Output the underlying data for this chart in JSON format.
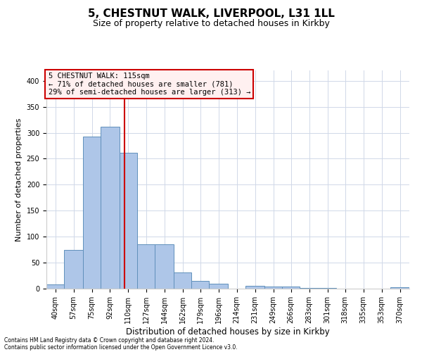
{
  "title1": "5, CHESTNUT WALK, LIVERPOOL, L31 1LL",
  "title2": "Size of property relative to detached houses in Kirkby",
  "xlabel": "Distribution of detached houses by size in Kirkby",
  "ylabel": "Number of detached properties",
  "footnote1": "Contains HM Land Registry data © Crown copyright and database right 2024.",
  "footnote2": "Contains public sector information licensed under the Open Government Licence v3.0.",
  "annotation_line1": "5 CHESTNUT WALK: 115sqm",
  "annotation_line2": "← 71% of detached houses are smaller (781)",
  "annotation_line3": "29% of semi-detached houses are larger (313) →",
  "bar_color": "#aec6e8",
  "bar_edge_color": "#6090bb",
  "vline_color": "#cc0000",
  "vline_x": 115,
  "bins": [
    40,
    57,
    75,
    92,
    110,
    127,
    144,
    162,
    179,
    196,
    214,
    231,
    249,
    266,
    283,
    301,
    318,
    335,
    353,
    370,
    388
  ],
  "counts": [
    8,
    75,
    293,
    311,
    262,
    85,
    85,
    31,
    15,
    9,
    0,
    5,
    4,
    4,
    2,
    1,
    0,
    0,
    0,
    3
  ],
  "ylim": [
    0,
    420
  ],
  "yticks": [
    0,
    50,
    100,
    150,
    200,
    250,
    300,
    350,
    400
  ],
  "background_color": "#ffffff",
  "grid_color": "#d0d8e8",
  "title1_fontsize": 11,
  "title2_fontsize": 9,
  "xlabel_fontsize": 8.5,
  "ylabel_fontsize": 8,
  "tick_fontsize": 7,
  "annotation_fontsize": 7.5,
  "footnote_fontsize": 5.5,
  "annotation_box_color": "#fff0f0",
  "annotation_box_edge": "#cc0000"
}
